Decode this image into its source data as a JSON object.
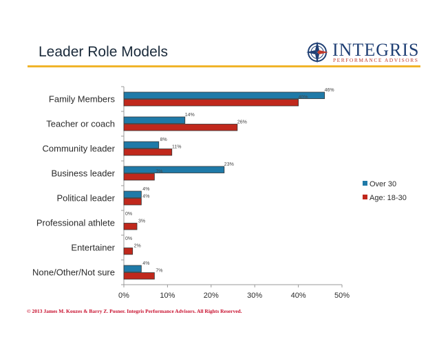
{
  "header": {
    "title": "Leader Role Models",
    "logo_word": "INTEGRIS",
    "logo_sub": "PERFORMANCE ADVISORS"
  },
  "footer": "© 2013 James M. Kouzes & Barry Z. Posner. Integris Performance Advisors. All Rights Reserved.",
  "colors": {
    "accent_rule": "#f0b429",
    "logo_blue": "#1f3f74",
    "footer_red": "#c8102e"
  },
  "chart_data": {
    "type": "bar",
    "orientation": "horizontal",
    "title": "",
    "xlabel": "",
    "ylabel": "",
    "categories": [
      "Family Members",
      "Teacher or coach",
      "Community leader",
      "Business leader",
      "Political leader",
      "Professional athlete",
      "Entertainer",
      "None/Other/Not sure"
    ],
    "series": [
      {
        "name": "Over 30",
        "color": "#1f7aa8",
        "values": [
          46,
          14,
          8,
          23,
          4,
          0,
          0,
          4
        ],
        "labels": [
          "46%",
          "14%",
          "8%",
          "23%",
          "4%",
          "0%",
          "0%",
          "4%"
        ]
      },
      {
        "name": "Age: 18-30",
        "color": "#c0281c",
        "values": [
          40,
          26,
          11,
          7,
          4,
          3,
          2,
          7
        ],
        "labels": [
          "40%",
          "26%",
          "11%",
          "7%",
          "4%",
          "3%",
          "2%",
          "7%"
        ]
      }
    ],
    "xlim": [
      0,
      50
    ],
    "xticks": [
      "0%",
      "10%",
      "20%",
      "30%",
      "40%",
      "50%"
    ],
    "grid": false,
    "legend_position": "right"
  }
}
